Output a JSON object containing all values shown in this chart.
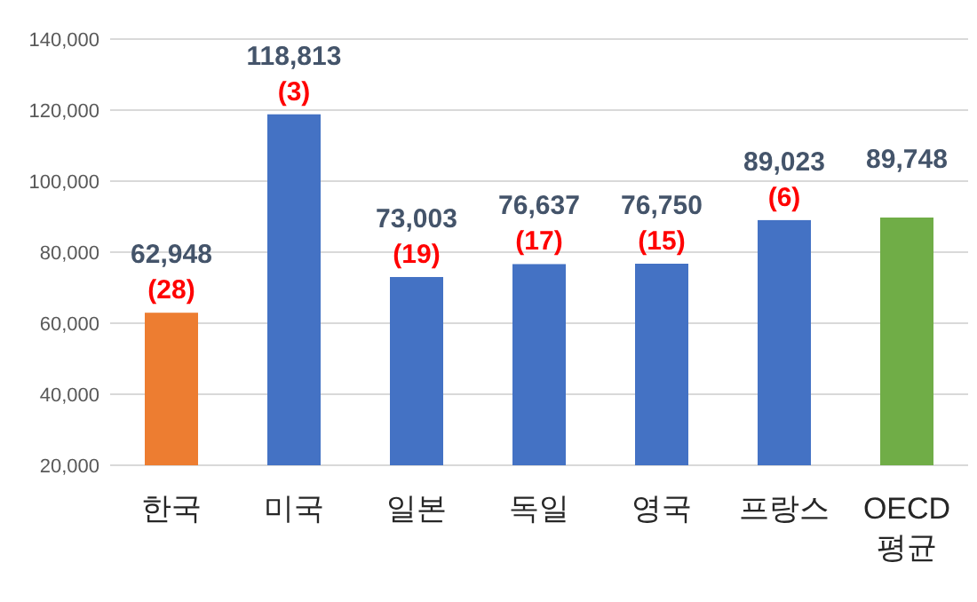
{
  "chart_data": {
    "type": "bar",
    "categories": [
      "한국",
      "미국",
      "일본",
      "독일",
      "영국",
      "프랑스",
      "OECD 평균"
    ],
    "values": [
      62948,
      118813,
      73003,
      76637,
      76750,
      89023,
      89748
    ],
    "colors": [
      "#ed7d31",
      "#4472c4",
      "#4472c4",
      "#4472c4",
      "#4472c4",
      "#4472c4",
      "#70ad47"
    ],
    "value_labels": [
      "62,948",
      "118,813",
      "73,003",
      "76,637",
      "76,750",
      "89,023",
      "89,748"
    ],
    "annotations": [
      {
        "text": "(28)",
        "x": "한국",
        "y": 62948
      },
      {
        "text": "(3)",
        "x": "미국",
        "y": 118813
      },
      {
        "text": "(19)",
        "x": "일본",
        "y": 73003
      },
      {
        "text": "(17)",
        "x": "독일",
        "y": 76637
      },
      {
        "text": "(15)",
        "x": "영국",
        "y": 76750
      },
      {
        "text": "(6)",
        "x": "프랑스",
        "y": 89023
      }
    ],
    "ylim": [
      20000,
      140000
    ],
    "yticks": [
      {
        "value": 20000,
        "label": "20,000"
      },
      {
        "value": 40000,
        "label": "40,000"
      },
      {
        "value": 60000,
        "label": "60,000"
      },
      {
        "value": 80000,
        "label": "80,000"
      },
      {
        "value": 100000,
        "label": "100,000"
      },
      {
        "value": 120000,
        "label": "120,000"
      },
      {
        "value": 140000,
        "label": "140,000"
      }
    ],
    "grid": "y"
  }
}
